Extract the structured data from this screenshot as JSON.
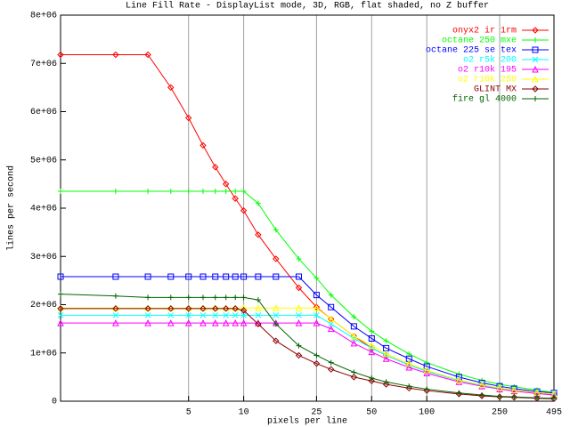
{
  "chart_data": {
    "type": "line",
    "title": "Line Fill Rate - DisplayList mode, 3D, RGB, flat shaded, no Z buffer",
    "x_label": "pixels per line",
    "y_label": "lines per second",
    "x_scale": "log",
    "grid": "x",
    "legend": "top-right",
    "xlim": [
      1,
      495
    ],
    "xticks": [
      5,
      10,
      25,
      50,
      100,
      250,
      495
    ],
    "ylim": [
      0,
      8000000
    ],
    "yticks": [
      0,
      {
        "value": 1000000,
        "label": "1e+06"
      },
      {
        "value": 2000000,
        "label": "2e+06"
      },
      {
        "value": 3000000,
        "label": "3e+06"
      },
      {
        "value": 4000000,
        "label": "4e+06"
      },
      {
        "value": 5000000,
        "label": "5e+06"
      },
      {
        "value": 6000000,
        "label": "6e+06"
      },
      {
        "value": 7000000,
        "label": "7e+06"
      },
      {
        "value": 8000000,
        "label": "8e+06"
      }
    ],
    "x": [
      1,
      2,
      3,
      4,
      5,
      6,
      7,
      8,
      9,
      10,
      12,
      15,
      20,
      25,
      30,
      40,
      50,
      60,
      80,
      100,
      150,
      200,
      250,
      300,
      400,
      495
    ],
    "series": [
      {
        "name": "onyx2 ir 1rm",
        "color": "#ff0000",
        "marker": "diamond",
        "values": [
          7180000,
          7180000,
          7180000,
          6500000,
          5870000,
          5300000,
          4850000,
          4500000,
          4200000,
          3950000,
          3450000,
          2950000,
          2350000,
          1950000,
          1700000,
          1350000,
          1100000,
          950000,
          750000,
          620000,
          430000,
          330000,
          270000,
          230000,
          170000,
          140000
        ]
      },
      {
        "name": "octane 250 mxe",
        "color": "#00ff00",
        "marker": "plus",
        "values": [
          4350000,
          4350000,
          4350000,
          4350000,
          4350000,
          4350000,
          4350000,
          4350000,
          4350000,
          4350000,
          4100000,
          3550000,
          2950000,
          2550000,
          2200000,
          1750000,
          1450000,
          1250000,
          980000,
          800000,
          560000,
          430000,
          350000,
          300000,
          230000,
          180000
        ]
      },
      {
        "name": "octane 225 se tex",
        "color": "#0000ff",
        "marker": "square",
        "values": [
          2580000,
          2580000,
          2580000,
          2580000,
          2580000,
          2580000,
          2580000,
          2580000,
          2580000,
          2580000,
          2580000,
          2580000,
          2580000,
          2200000,
          1950000,
          1550000,
          1300000,
          1100000,
          880000,
          720000,
          500000,
          380000,
          310000,
          260000,
          200000,
          170000
        ]
      },
      {
        "name": "o2 r5k 200",
        "color": "#00ffff",
        "marker": "cross",
        "values": [
          1780000,
          1780000,
          1780000,
          1780000,
          1780000,
          1780000,
          1780000,
          1780000,
          1780000,
          1780000,
          1780000,
          1780000,
          1780000,
          1780000,
          1600000,
          1300000,
          1100000,
          950000,
          750000,
          620000,
          430000,
          330000,
          270000,
          230000,
          180000,
          150000
        ]
      },
      {
        "name": "o2 r10k 195",
        "color": "#ff00ff",
        "marker": "triangle",
        "values": [
          1620000,
          1620000,
          1620000,
          1620000,
          1620000,
          1620000,
          1620000,
          1620000,
          1620000,
          1620000,
          1620000,
          1620000,
          1620000,
          1620000,
          1500000,
          1200000,
          1020000,
          880000,
          700000,
          580000,
          400000,
          310000,
          250000,
          210000,
          160000,
          130000
        ]
      },
      {
        "name": "o2 r10k 250",
        "color": "#ffff00",
        "marker": "triangle",
        "values": [
          1930000,
          1930000,
          1930000,
          1930000,
          1930000,
          1930000,
          1930000,
          1930000,
          1930000,
          1930000,
          1930000,
          1930000,
          1930000,
          1930000,
          1700000,
          1350000,
          1150000,
          980000,
          780000,
          640000,
          440000,
          340000,
          280000,
          230000,
          180000,
          150000
        ]
      },
      {
        "name": "GLINT MX",
        "color": "#8b0000",
        "marker": "diamond",
        "values": [
          1920000,
          1920000,
          1920000,
          1920000,
          1920000,
          1920000,
          1920000,
          1920000,
          1920000,
          1880000,
          1600000,
          1250000,
          950000,
          780000,
          660000,
          500000,
          420000,
          350000,
          270000,
          220000,
          150000,
          110000,
          90000,
          80000,
          60000,
          50000
        ]
      },
      {
        "name": "fire gl 4000",
        "color": "#006400",
        "marker": "plus",
        "values": [
          2220000,
          2180000,
          2150000,
          2150000,
          2150000,
          2150000,
          2150000,
          2150000,
          2150000,
          2150000,
          2100000,
          1600000,
          1150000,
          950000,
          800000,
          600000,
          480000,
          400000,
          310000,
          250000,
          170000,
          130000,
          100000,
          90000,
          70000,
          60000
        ]
      }
    ]
  }
}
